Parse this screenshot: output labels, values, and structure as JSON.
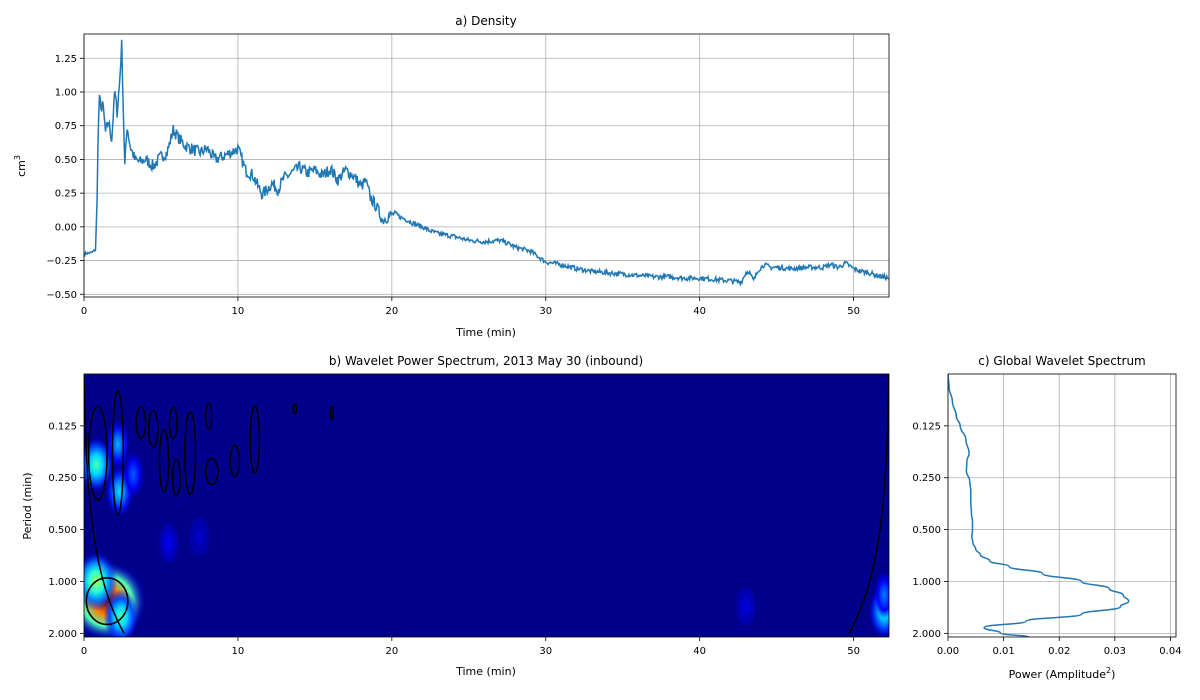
{
  "chart_data": [
    {
      "panel": "a",
      "type": "line",
      "title": "a) Density",
      "xlabel": "Time (min)",
      "ylabel": "cm",
      "ylabel_sup": "3",
      "xlim": [
        0,
        52.3
      ],
      "ylim": [
        -0.52,
        1.43
      ],
      "xticks": [
        0,
        10,
        20,
        30,
        40,
        50
      ],
      "yticks": [
        -0.5,
        -0.25,
        0.0,
        0.25,
        0.5,
        0.75,
        1.0,
        1.25
      ],
      "ytick_labels": [
        "−0.50",
        "−0.25",
        "0.00",
        "0.25",
        "0.50",
        "0.75",
        "1.00",
        "1.25"
      ],
      "grid": true,
      "color": "#1f77b4",
      "x": [
        0,
        0.5,
        0.75,
        0.85,
        0.9,
        1.0,
        1.1,
        1.2,
        1.4,
        1.6,
        1.8,
        2.0,
        2.15,
        2.3,
        2.45,
        2.55,
        2.65,
        2.8,
        3.0,
        3.3,
        3.6,
        4.0,
        4.5,
        5.0,
        5.4,
        5.8,
        6.2,
        6.6,
        7.0,
        7.5,
        8.0,
        8.5,
        9.0,
        9.5,
        10.0,
        10.5,
        11.0,
        11.3,
        11.6,
        11.9,
        12.2,
        12.6,
        13.0,
        13.5,
        14.0,
        14.5,
        15.0,
        15.5,
        16.0,
        16.5,
        17.0,
        17.5,
        18.0,
        18.3,
        18.6,
        19.0,
        19.4,
        19.8,
        20.2,
        20.6,
        21.0,
        21.5,
        22.0,
        22.5,
        23.0,
        24.0,
        25.0,
        26.0,
        27.0,
        27.5,
        28.0,
        29.0,
        29.5,
        30.0,
        31.0,
        32.0,
        33.0,
        34.0,
        35.0,
        36.0,
        37.0,
        38.0,
        39.0,
        40.0,
        41.0,
        42.0,
        42.7,
        43.0,
        43.2,
        43.5,
        43.8,
        44.2,
        44.6,
        45.0,
        46.0,
        47.0,
        48.0,
        48.5,
        49.0,
        49.5,
        50.0,
        50.5,
        51.0,
        51.5,
        52.3
      ],
      "y": [
        -0.2,
        -0.19,
        -0.17,
        0.2,
        0.6,
        0.98,
        0.85,
        0.93,
        0.7,
        0.78,
        0.65,
        1.0,
        0.85,
        1.05,
        1.35,
        0.9,
        0.45,
        0.75,
        0.6,
        0.5,
        0.48,
        0.5,
        0.45,
        0.52,
        0.55,
        0.72,
        0.65,
        0.6,
        0.58,
        0.55,
        0.58,
        0.5,
        0.52,
        0.55,
        0.58,
        0.42,
        0.38,
        0.3,
        0.24,
        0.28,
        0.32,
        0.28,
        0.36,
        0.4,
        0.44,
        0.4,
        0.42,
        0.38,
        0.43,
        0.35,
        0.42,
        0.38,
        0.3,
        0.34,
        0.22,
        0.15,
        0.05,
        0.08,
        0.1,
        0.07,
        0.05,
        0.02,
        0.0,
        -0.03,
        -0.05,
        -0.07,
        -0.1,
        -0.11,
        -0.1,
        -0.12,
        -0.15,
        -0.18,
        -0.22,
        -0.26,
        -0.28,
        -0.31,
        -0.33,
        -0.34,
        -0.35,
        -0.36,
        -0.37,
        -0.37,
        -0.38,
        -0.38,
        -0.39,
        -0.4,
        -0.41,
        -0.34,
        -0.33,
        -0.4,
        -0.32,
        -0.28,
        -0.3,
        -0.3,
        -0.31,
        -0.3,
        -0.3,
        -0.28,
        -0.3,
        -0.27,
        -0.31,
        -0.33,
        -0.34,
        -0.36,
        -0.38
      ]
    },
    {
      "panel": "b",
      "type": "heatmap",
      "title": "b) Wavelet Power Spectrum, 2013 May 30 (inbound)",
      "xlabel": "Time (min)",
      "ylabel": "Period (min)",
      "xlim": [
        0,
        52.3
      ],
      "ylim_period": [
        0.0625,
        2.1
      ],
      "y_scale": "log2, inverted (small periods at top)",
      "xticks": [
        0,
        10,
        20,
        30,
        40,
        50
      ],
      "yticks": [
        0.125,
        0.25,
        0.5,
        1.0,
        2.0
      ],
      "ytick_labels": [
        "0.125",
        "0.250",
        "0.500",
        "1.000",
        "2.000"
      ],
      "colormap": "jet",
      "background_color": "#00008b",
      "hotspots": [
        {
          "t": 1.5,
          "period": 1.3,
          "power": 1.0
        },
        {
          "t": 0.8,
          "period": 1.0,
          "power": 0.55
        },
        {
          "t": 2.4,
          "period": 1.6,
          "power": 0.45
        },
        {
          "t": 0.8,
          "period": 0.21,
          "power": 0.45
        },
        {
          "t": 2.2,
          "period": 0.16,
          "power": 0.3
        },
        {
          "t": 2.3,
          "period": 0.3,
          "power": 0.35
        },
        {
          "t": 3.2,
          "period": 0.24,
          "power": 0.22
        },
        {
          "t": 5.5,
          "period": 0.6,
          "power": 0.12
        },
        {
          "t": 7.5,
          "period": 0.55,
          "power": 0.08
        },
        {
          "t": 43.0,
          "period": 1.4,
          "power": 0.1
        },
        {
          "t": 52.0,
          "period": 1.5,
          "power": 0.4
        },
        {
          "t": 52.0,
          "period": 1.2,
          "power": 0.25
        }
      ],
      "significance_contours": [
        {
          "t": 1.5,
          "period": 1.3,
          "t_halfwidth": 1.35,
          "log2_halfwidth": 0.45
        },
        {
          "t": 0.9,
          "period": 0.18,
          "t_halfwidth": 0.6,
          "log2_halfwidth": 0.9
        },
        {
          "t": 2.2,
          "period": 0.18,
          "t_halfwidth": 0.35,
          "log2_halfwidth": 1.2
        },
        {
          "t": 3.7,
          "period": 0.12,
          "t_halfwidth": 0.3,
          "log2_halfwidth": 0.3
        },
        {
          "t": 4.5,
          "period": 0.13,
          "t_halfwidth": 0.3,
          "log2_halfwidth": 0.35
        },
        {
          "t": 5.2,
          "period": 0.2,
          "t_halfwidth": 0.3,
          "log2_halfwidth": 0.6
        },
        {
          "t": 5.8,
          "period": 0.12,
          "t_halfwidth": 0.25,
          "log2_halfwidth": 0.3
        },
        {
          "t": 6.0,
          "period": 0.25,
          "t_halfwidth": 0.25,
          "log2_halfwidth": 0.35
        },
        {
          "t": 6.9,
          "period": 0.18,
          "t_halfwidth": 0.35,
          "log2_halfwidth": 0.8
        },
        {
          "t": 8.1,
          "period": 0.11,
          "t_halfwidth": 0.2,
          "log2_halfwidth": 0.25
        },
        {
          "t": 8.3,
          "period": 0.23,
          "t_halfwidth": 0.4,
          "log2_halfwidth": 0.25
        },
        {
          "t": 9.8,
          "period": 0.2,
          "t_halfwidth": 0.3,
          "log2_halfwidth": 0.3
        },
        {
          "t": 11.1,
          "period": 0.15,
          "t_halfwidth": 0.3,
          "log2_halfwidth": 0.65
        },
        {
          "t": 13.7,
          "period": 0.1,
          "t_halfwidth": 0.1,
          "log2_halfwidth": 0.1
        },
        {
          "t": 16.1,
          "period": 0.105,
          "t_halfwidth": 0.1,
          "log2_halfwidth": 0.12
        }
      ],
      "cone_of_influence": {
        "left_t_at_period_2": 2.6,
        "right_t_at_period_2": 49.7,
        "edge_period": 0.0625
      }
    },
    {
      "panel": "c",
      "type": "line",
      "title": "c) Global Wavelet Spectrum",
      "xlabel": "Power (Amplitude",
      "xlabel_sup": "2",
      "xlabel_end": ")",
      "xlim": [
        0,
        0.041
      ],
      "xticks": [
        0.0,
        0.01,
        0.02,
        0.03,
        0.04
      ],
      "xtick_labels": [
        "0.00",
        "0.01",
        "0.02",
        "0.03",
        "0.04"
      ],
      "yticks": [
        0.125,
        0.25,
        0.5,
        1.0,
        2.0
      ],
      "ytick_labels": [
        "0.125",
        "0.250",
        "0.500",
        "1.000",
        "2.000"
      ],
      "y_scale": "log2, inverted (shared with panel b)",
      "grid": true,
      "color": "#1f77b4",
      "period": [
        0.0625,
        0.075,
        0.09,
        0.11,
        0.125,
        0.15,
        0.18,
        0.2,
        0.23,
        0.26,
        0.3,
        0.35,
        0.4,
        0.45,
        0.5,
        0.55,
        0.6,
        0.65,
        0.7,
        0.76,
        0.82,
        0.9,
        1.0,
        1.1,
        1.2,
        1.3,
        1.4,
        1.55,
        1.7,
        1.85,
        2.0,
        2.1
      ],
      "power": [
        0.0,
        0.0002,
        0.0008,
        0.0015,
        0.0022,
        0.0032,
        0.0038,
        0.0034,
        0.0033,
        0.0039,
        0.0041,
        0.0041,
        0.0042,
        0.0044,
        0.0044,
        0.0043,
        0.0045,
        0.005,
        0.0058,
        0.0075,
        0.011,
        0.017,
        0.024,
        0.029,
        0.0315,
        0.0325,
        0.031,
        0.024,
        0.014,
        0.0065,
        0.0095,
        0.0145
      ]
    }
  ]
}
